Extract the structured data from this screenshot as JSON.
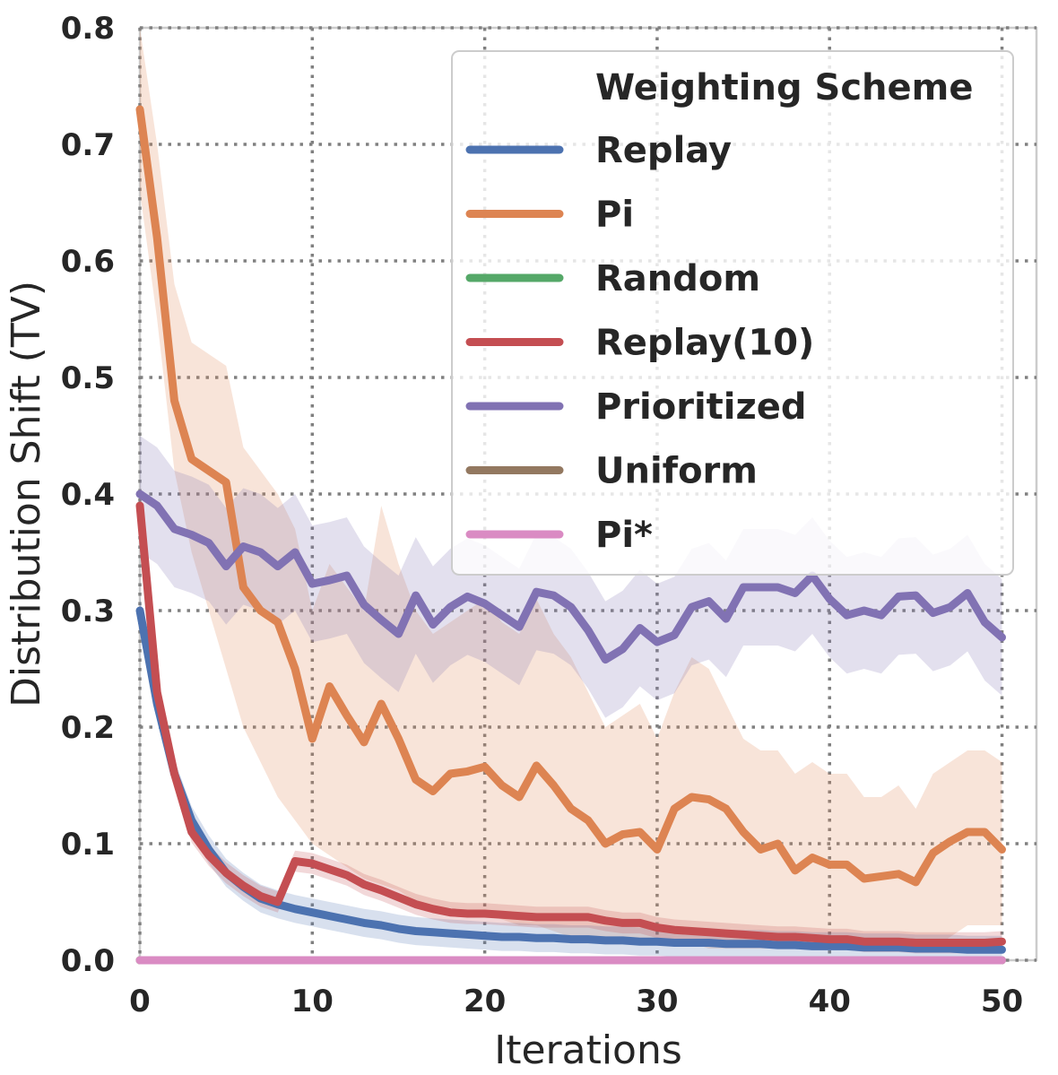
{
  "chart_data": {
    "type": "line",
    "title": "",
    "xlabel": "Iterations",
    "ylabel": "Distribution Shift (TV)",
    "xlim": [
      0,
      52
    ],
    "ylim": [
      0,
      0.8
    ],
    "x_ticks": [
      0,
      10,
      20,
      30,
      40,
      50
    ],
    "y_ticks": [
      0.0,
      0.1,
      0.2,
      0.3,
      0.4,
      0.5,
      0.6,
      0.7,
      0.8
    ],
    "x_tick_labels": [
      "0",
      "10",
      "20",
      "30",
      "40",
      "50"
    ],
    "y_tick_labels": [
      "0.0",
      "0.1",
      "0.2",
      "0.3",
      "0.4",
      "0.5",
      "0.6",
      "0.7",
      "0.8"
    ],
    "grid": true,
    "legend": {
      "title": "Weighting Scheme",
      "placement": "top-right"
    },
    "series": [
      {
        "name": "Replay",
        "color": "#4c72b0",
        "values": [
          0.3,
          0.22,
          0.16,
          0.12,
          0.095,
          0.075,
          0.063,
          0.053,
          0.048,
          0.044,
          0.041,
          0.038,
          0.035,
          0.032,
          0.03,
          0.027,
          0.025,
          0.024,
          0.023,
          0.022,
          0.021,
          0.02,
          0.02,
          0.019,
          0.019,
          0.018,
          0.018,
          0.017,
          0.017,
          0.016,
          0.016,
          0.015,
          0.015,
          0.015,
          0.014,
          0.014,
          0.014,
          0.013,
          0.013,
          0.012,
          0.012,
          0.012,
          0.011,
          0.011,
          0.011,
          0.01,
          0.01,
          0.01,
          0.009,
          0.009,
          0.009
        ],
        "band": 0.012
      },
      {
        "name": "Pi",
        "color": "#dd8452",
        "values": [
          0.73,
          0.62,
          0.48,
          0.43,
          0.42,
          0.41,
          0.32,
          0.3,
          0.29,
          0.25,
          0.19,
          0.235,
          0.21,
          0.187,
          0.22,
          0.19,
          0.155,
          0.145,
          0.16,
          0.162,
          0.166,
          0.15,
          0.14,
          0.167,
          0.15,
          0.13,
          0.12,
          0.1,
          0.108,
          0.11,
          0.095,
          0.13,
          0.14,
          0.138,
          0.13,
          0.11,
          0.095,
          0.1,
          0.077,
          0.088,
          0.082,
          0.082,
          0.07,
          0.072,
          0.074,
          0.067,
          0.092,
          0.102,
          0.11,
          0.11,
          0.095
        ],
        "band_lower": [
          0.66,
          0.55,
          0.42,
          0.35,
          0.3,
          0.25,
          0.2,
          0.17,
          0.14,
          0.12,
          0.1,
          0.09,
          0.08,
          0.07,
          0.065,
          0.06,
          0.05,
          0.045,
          0.045,
          0.04,
          0.04,
          0.035,
          0.03,
          0.03,
          0.025,
          0.02,
          0.02,
          0.02,
          0.015,
          0.015,
          0.015,
          0.015,
          0.015,
          0.01,
          0.01,
          0.01,
          0.01,
          0.01,
          0.01,
          0.01,
          0.01,
          0.01,
          0.01,
          0.01,
          0.01,
          0.01,
          0.01,
          0.02,
          0.03,
          0.03,
          0.03
        ],
        "band_upper": [
          0.8,
          0.7,
          0.58,
          0.53,
          0.52,
          0.51,
          0.44,
          0.42,
          0.4,
          0.37,
          0.3,
          0.34,
          0.32,
          0.3,
          0.39,
          0.34,
          0.3,
          0.28,
          0.29,
          0.3,
          0.31,
          0.29,
          0.28,
          0.31,
          0.28,
          0.26,
          0.23,
          0.2,
          0.21,
          0.22,
          0.19,
          0.23,
          0.26,
          0.25,
          0.22,
          0.19,
          0.18,
          0.18,
          0.16,
          0.17,
          0.16,
          0.16,
          0.14,
          0.14,
          0.15,
          0.13,
          0.16,
          0.17,
          0.18,
          0.18,
          0.17
        ]
      },
      {
        "name": "Random",
        "color": "#55a868",
        "values": [
          0,
          0,
          0,
          0,
          0,
          0,
          0,
          0,
          0,
          0,
          0,
          0,
          0,
          0,
          0,
          0,
          0,
          0,
          0,
          0,
          0,
          0,
          0,
          0,
          0,
          0,
          0,
          0,
          0,
          0,
          0,
          0,
          0,
          0,
          0,
          0,
          0,
          0,
          0,
          0,
          0,
          0,
          0,
          0,
          0,
          0,
          0,
          0,
          0,
          0,
          0
        ]
      },
      {
        "name": "Replay(10)",
        "color": "#c44e52",
        "values": [
          0.39,
          0.23,
          0.16,
          0.11,
          0.09,
          0.075,
          0.064,
          0.055,
          0.05,
          0.085,
          0.083,
          0.078,
          0.073,
          0.065,
          0.06,
          0.054,
          0.048,
          0.044,
          0.041,
          0.04,
          0.04,
          0.039,
          0.038,
          0.037,
          0.037,
          0.037,
          0.037,
          0.034,
          0.032,
          0.032,
          0.028,
          0.026,
          0.025,
          0.024,
          0.023,
          0.022,
          0.021,
          0.02,
          0.02,
          0.019,
          0.018,
          0.018,
          0.016,
          0.016,
          0.016,
          0.015,
          0.015,
          0.015,
          0.015,
          0.015,
          0.016
        ],
        "band": 0.009
      },
      {
        "name": "Prioritized",
        "color": "#8172b3",
        "values": [
          0.4,
          0.39,
          0.37,
          0.365,
          0.358,
          0.338,
          0.355,
          0.35,
          0.338,
          0.35,
          0.323,
          0.326,
          0.33,
          0.305,
          0.292,
          0.28,
          0.313,
          0.288,
          0.303,
          0.312,
          0.306,
          0.296,
          0.286,
          0.316,
          0.313,
          0.303,
          0.283,
          0.258,
          0.267,
          0.285,
          0.273,
          0.279,
          0.303,
          0.308,
          0.293,
          0.32,
          0.32,
          0.32,
          0.315,
          0.33,
          0.31,
          0.296,
          0.3,
          0.296,
          0.312,
          0.313,
          0.298,
          0.303,
          0.315,
          0.29,
          0.277
        ],
        "band": 0.05
      },
      {
        "name": "Uniform",
        "color": "#937860",
        "values": [
          0,
          0,
          0,
          0,
          0,
          0,
          0,
          0,
          0,
          0,
          0,
          0,
          0,
          0,
          0,
          0,
          0,
          0,
          0,
          0,
          0,
          0,
          0,
          0,
          0,
          0,
          0,
          0,
          0,
          0,
          0,
          0,
          0,
          0,
          0,
          0,
          0,
          0,
          0,
          0,
          0,
          0,
          0,
          0,
          0,
          0,
          0,
          0,
          0,
          0,
          0
        ]
      },
      {
        "name": "Pi*",
        "color": "#da8bc3",
        "values": [
          0,
          0,
          0,
          0,
          0,
          0,
          0,
          0,
          0,
          0,
          0,
          0,
          0,
          0,
          0,
          0,
          0,
          0,
          0,
          0,
          0,
          0,
          0,
          0,
          0,
          0,
          0,
          0,
          0,
          0,
          0,
          0,
          0,
          0,
          0,
          0,
          0,
          0,
          0,
          0,
          0,
          0,
          0,
          0,
          0,
          0,
          0,
          0,
          0,
          0,
          0
        ]
      }
    ]
  }
}
